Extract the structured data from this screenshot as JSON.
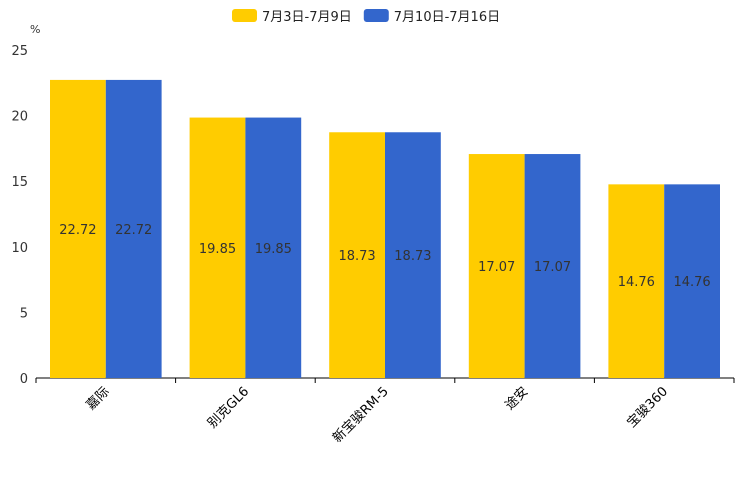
{
  "chart_data": {
    "type": "bar",
    "title": "",
    "xlabel": "",
    "ylabel": "%",
    "ylim": [
      0,
      25
    ],
    "yticks": [
      0,
      5,
      10,
      15,
      20,
      25
    ],
    "categories": [
      "嘉际",
      "别克GL6",
      "新宝骏RM-5",
      "途安",
      "宝骏360"
    ],
    "series": [
      {
        "name": "7月3日-7月9日",
        "color": "#FFCC00",
        "values": [
          22.72,
          19.85,
          18.73,
          17.07,
          14.76
        ]
      },
      {
        "name": "7月10日-7月16日",
        "color": "#3366CC",
        "values": [
          22.72,
          19.85,
          18.73,
          17.07,
          14.76
        ]
      }
    ],
    "legend_position": "top-center",
    "grid": false
  }
}
